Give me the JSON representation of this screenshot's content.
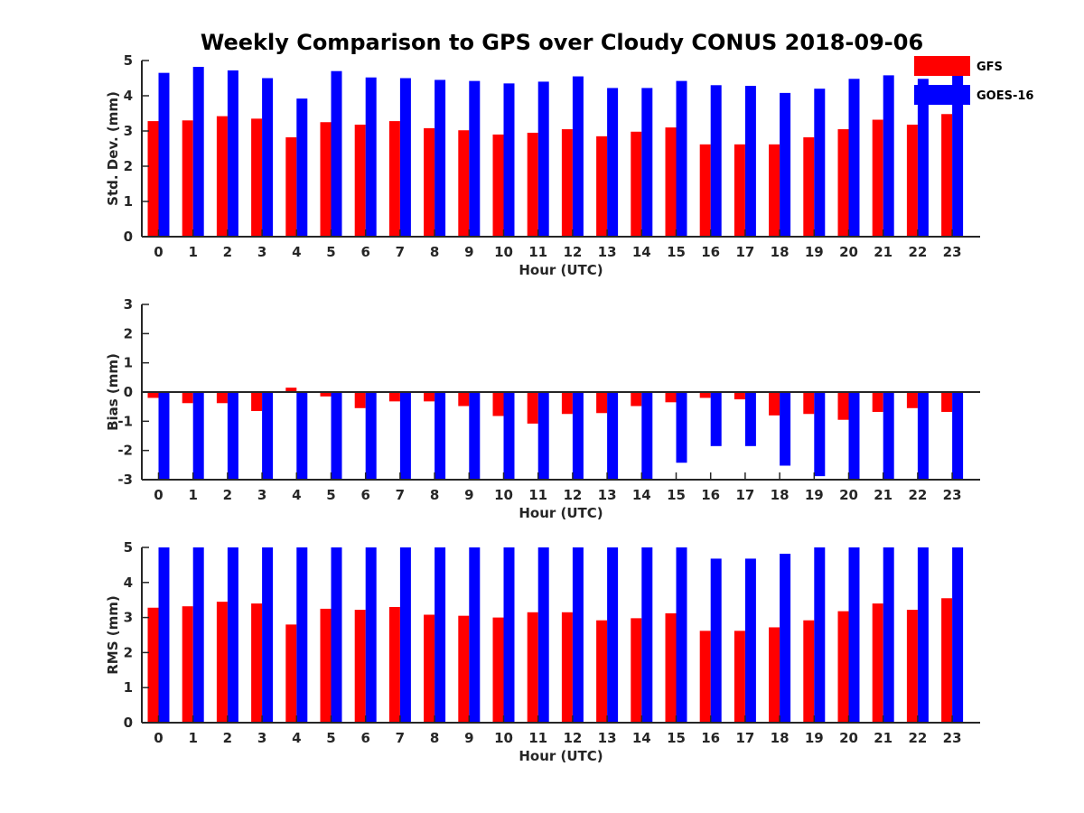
{
  "title": "Weekly Comparison to GPS over Cloudy CONUS 2018-09-06",
  "legend": {
    "position": "top-right",
    "entries": [
      {
        "name": "GFS",
        "color": "#ff0000"
      },
      {
        "name": "GOES-16",
        "color": "#0000ff"
      }
    ]
  },
  "chart_data": [
    {
      "type": "bar",
      "xlabel": "Hour (UTC)",
      "ylabel": "Std. Dev. (mm)",
      "ylim": [
        0,
        5
      ],
      "yticks": [
        "0",
        "1",
        "2",
        "3",
        "4",
        "5"
      ],
      "categories": [
        "0",
        "1",
        "2",
        "3",
        "4",
        "5",
        "6",
        "7",
        "8",
        "9",
        "10",
        "11",
        "12",
        "13",
        "14",
        "15",
        "16",
        "17",
        "18",
        "19",
        "20",
        "21",
        "22",
        "23"
      ],
      "series": [
        {
          "name": "GFS",
          "color": "#ff0000",
          "values": [
            3.28,
            3.3,
            3.42,
            3.35,
            2.82,
            3.25,
            3.18,
            3.28,
            3.08,
            3.02,
            2.9,
            2.95,
            3.05,
            2.85,
            2.98,
            3.1,
            2.62,
            2.62,
            2.62,
            2.82,
            3.05,
            3.32,
            3.18,
            3.48
          ]
        },
        {
          "name": "GOES-16",
          "color": "#0000ff",
          "values": [
            4.65,
            4.82,
            4.72,
            4.5,
            3.92,
            4.7,
            4.52,
            4.5,
            4.45,
            4.42,
            4.35,
            4.4,
            4.55,
            4.22,
            4.22,
            4.42,
            4.3,
            4.28,
            4.08,
            4.2,
            4.48,
            4.58,
            4.48,
            4.65
          ]
        }
      ]
    },
    {
      "type": "bar",
      "xlabel": "Hour (UTC)",
      "ylabel": "Bias (mm)",
      "ylim": [
        -3,
        3
      ],
      "yticks": [
        "-3",
        "-2",
        "-1",
        "0",
        "1",
        "2",
        "3"
      ],
      "categories": [
        "0",
        "1",
        "2",
        "3",
        "4",
        "5",
        "6",
        "7",
        "8",
        "9",
        "10",
        "11",
        "12",
        "13",
        "14",
        "15",
        "16",
        "17",
        "18",
        "19",
        "20",
        "21",
        "22",
        "23"
      ],
      "series": [
        {
          "name": "GFS",
          "color": "#ff0000",
          "values": [
            -0.2,
            -0.38,
            -0.38,
            -0.65,
            0.15,
            -0.15,
            -0.55,
            -0.32,
            -0.32,
            -0.48,
            -0.82,
            -1.08,
            -0.75,
            -0.72,
            -0.48,
            -0.35,
            -0.2,
            -0.25,
            -0.8,
            -0.75,
            -0.95,
            -0.68,
            -0.55,
            -0.68
          ]
        },
        {
          "name": "GOES-16",
          "color": "#0000ff",
          "values": [
            -3.0,
            -3.0,
            -3.0,
            -3.0,
            -3.0,
            -3.0,
            -3.0,
            -3.0,
            -3.0,
            -3.0,
            -3.0,
            -3.0,
            -3.0,
            -3.0,
            -3.0,
            -2.42,
            -1.85,
            -1.85,
            -2.52,
            -2.88,
            -3.0,
            -3.0,
            -3.0,
            -3.0
          ]
        }
      ]
    },
    {
      "type": "bar",
      "xlabel": "Hour (UTC)",
      "ylabel": "RMS (mm)",
      "ylim": [
        0,
        5
      ],
      "yticks": [
        "0",
        "1",
        "2",
        "3",
        "4",
        "5"
      ],
      "categories": [
        "0",
        "1",
        "2",
        "3",
        "4",
        "5",
        "6",
        "7",
        "8",
        "9",
        "10",
        "11",
        "12",
        "13",
        "14",
        "15",
        "16",
        "17",
        "18",
        "19",
        "20",
        "21",
        "22",
        "23"
      ],
      "series": [
        {
          "name": "GFS",
          "color": "#ff0000",
          "values": [
            3.28,
            3.32,
            3.45,
            3.4,
            2.8,
            3.25,
            3.22,
            3.3,
            3.08,
            3.05,
            3.0,
            3.15,
            3.15,
            2.92,
            2.98,
            3.12,
            2.62,
            2.62,
            2.72,
            2.92,
            3.18,
            3.4,
            3.22,
            3.55
          ]
        },
        {
          "name": "GOES-16",
          "color": "#0000ff",
          "values": [
            5.0,
            5.0,
            5.0,
            5.0,
            5.0,
            5.0,
            5.0,
            5.0,
            5.0,
            5.0,
            5.0,
            5.0,
            5.0,
            5.0,
            5.0,
            5.0,
            4.68,
            4.68,
            4.82,
            5.0,
            5.0,
            5.0,
            5.0,
            5.0
          ]
        }
      ]
    }
  ]
}
